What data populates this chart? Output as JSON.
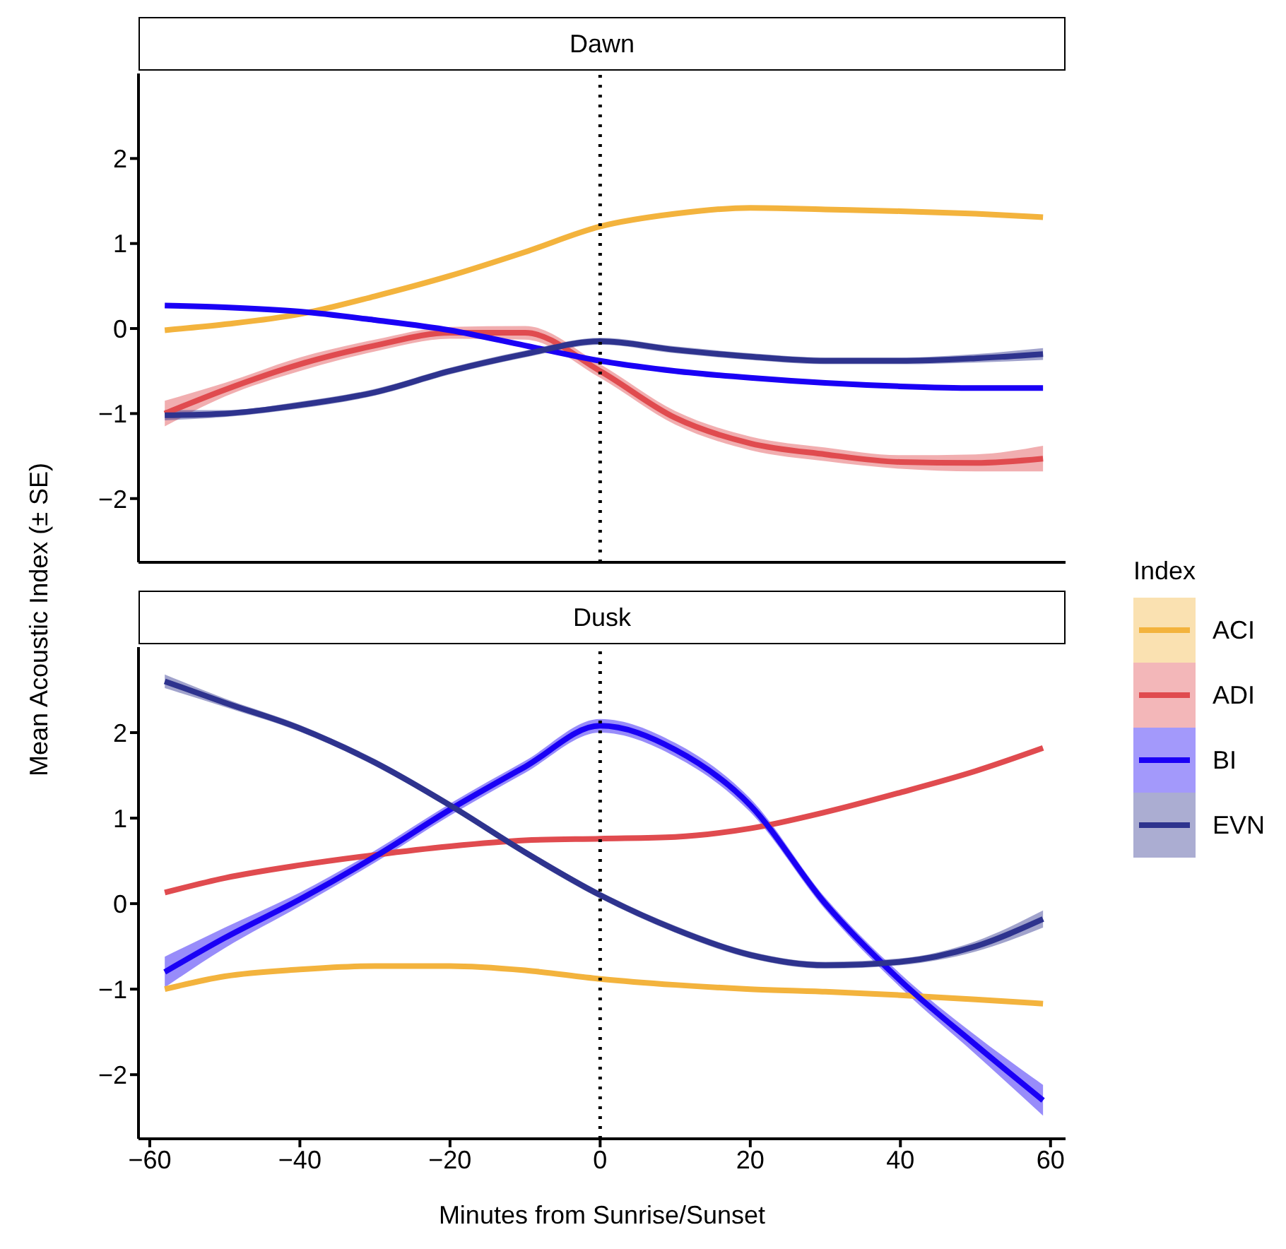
{
  "chart_data": [
    {
      "type": "line",
      "title": "Dawn",
      "ylabel": "Mean Acoustic Index (± SE)",
      "x": [
        -58,
        -50,
        -40,
        -30,
        -20,
        -10,
        0,
        10,
        20,
        30,
        40,
        50,
        59
      ],
      "series": [
        {
          "color": "#f3b33d",
          "values": [
            -0.02,
            0.05,
            0.17,
            0.38,
            0.62,
            0.9,
            1.2,
            1.35,
            1.42,
            1.4,
            1.38,
            1.35,
            1.31
          ]
        },
        {
          "color": "#e04b4f",
          "values": [
            -1.0,
            -0.72,
            -0.42,
            -0.2,
            -0.05,
            -0.05,
            -0.5,
            -1.05,
            -1.35,
            -1.48,
            -1.57,
            -1.58,
            -1.53
          ],
          "lower": [
            -1.15,
            -0.8,
            -0.5,
            -0.27,
            -0.12,
            -0.13,
            -0.58,
            -1.13,
            -1.43,
            -1.56,
            -1.65,
            -1.68,
            -1.68
          ],
          "upper": [
            -0.85,
            -0.64,
            -0.34,
            -0.13,
            0.02,
            0.03,
            -0.42,
            -0.97,
            -1.27,
            -1.4,
            -1.49,
            -1.48,
            -1.38
          ]
        },
        {
          "color": "#1a00f5",
          "values": [
            0.27,
            0.25,
            0.2,
            0.1,
            -0.02,
            -0.2,
            -0.38,
            -0.5,
            -0.58,
            -0.64,
            -0.68,
            -0.7,
            -0.7
          ]
        },
        {
          "color": "#2e338e",
          "values": [
            -1.02,
            -1.0,
            -0.9,
            -0.75,
            -0.5,
            -0.3,
            -0.15,
            -0.25,
            -0.33,
            -0.38,
            -0.38,
            -0.35,
            -0.3
          ],
          "lower": [
            -1.08,
            -1.04,
            -0.94,
            -0.79,
            -0.54,
            -0.34,
            -0.19,
            -0.29,
            -0.37,
            -0.42,
            -0.42,
            -0.4,
            -0.37
          ],
          "upper": [
            -0.96,
            -0.96,
            -0.86,
            -0.71,
            -0.46,
            -0.26,
            -0.11,
            -0.21,
            -0.29,
            -0.34,
            -0.34,
            -0.3,
            -0.23
          ]
        }
      ],
      "xlim": [
        -61.5,
        62
      ],
      "xticks": [
        -60,
        -40,
        -20,
        0,
        20,
        40,
        60
      ],
      "ylim": [
        -2.75,
        3.0
      ],
      "yticks": [
        -2,
        -1,
        0,
        1,
        2
      ],
      "tick_labels": "y",
      "line_style": "solid",
      "marker": "none",
      "ref_lines": [
        {
          "axis": "x",
          "value": 0,
          "line_style": "dotted",
          "color": "#000000"
        }
      ]
    },
    {
      "type": "line",
      "title": "Dusk",
      "xlabel": "Minutes from Sunrise/Sunset",
      "legend_title": "Index",
      "x": [
        -58,
        -50,
        -40,
        -30,
        -20,
        -10,
        0,
        10,
        20,
        30,
        40,
        50,
        59
      ],
      "series": [
        {
          "name": "ACI",
          "color": "#f3b33d",
          "values": [
            -1.0,
            -0.85,
            -0.77,
            -0.73,
            -0.73,
            -0.78,
            -0.88,
            -0.95,
            -1.0,
            -1.03,
            -1.07,
            -1.12,
            -1.17
          ]
        },
        {
          "name": "ADI",
          "color": "#e04b4f",
          "values": [
            0.13,
            0.3,
            0.45,
            0.57,
            0.67,
            0.74,
            0.76,
            0.78,
            0.88,
            1.07,
            1.3,
            1.55,
            1.82
          ]
        },
        {
          "name": "BI",
          "color": "#1a00f5",
          "values": [
            -0.8,
            -0.4,
            0.05,
            0.55,
            1.1,
            1.6,
            2.08,
            1.8,
            1.15,
            0.0,
            -0.9,
            -1.65,
            -2.3
          ],
          "lower": [
            -0.98,
            -0.52,
            -0.03,
            0.48,
            1.03,
            1.53,
            2.0,
            1.72,
            1.07,
            -0.07,
            -0.98,
            -1.76,
            -2.48
          ],
          "upper": [
            -0.62,
            -0.28,
            0.13,
            0.62,
            1.17,
            1.67,
            2.16,
            1.88,
            1.23,
            0.07,
            -0.82,
            -1.54,
            -2.12
          ]
        },
        {
          "name": "EVN",
          "color": "#2e338e",
          "values": [
            2.6,
            2.35,
            2.05,
            1.65,
            1.15,
            0.6,
            0.1,
            -0.3,
            -0.6,
            -0.72,
            -0.68,
            -0.5,
            -0.18
          ],
          "lower": [
            2.52,
            2.3,
            2.01,
            1.61,
            1.11,
            0.56,
            0.06,
            -0.34,
            -0.64,
            -0.76,
            -0.72,
            -0.56,
            -0.28
          ],
          "upper": [
            2.68,
            2.4,
            2.09,
            1.69,
            1.19,
            0.64,
            0.14,
            -0.26,
            -0.56,
            -0.68,
            -0.64,
            -0.44,
            -0.08
          ]
        }
      ],
      "xlim": [
        -61.5,
        62
      ],
      "xticks": [
        -60,
        -40,
        -20,
        0,
        20,
        40,
        60
      ],
      "ylim": [
        -2.75,
        3.0
      ],
      "yticks": [
        -2,
        -1,
        0,
        1,
        2
      ],
      "legend": "right",
      "line_style": "solid",
      "marker": "none",
      "ref_lines": [
        {
          "axis": "x",
          "value": 0,
          "line_style": "dotted",
          "color": "#000000"
        }
      ]
    }
  ]
}
